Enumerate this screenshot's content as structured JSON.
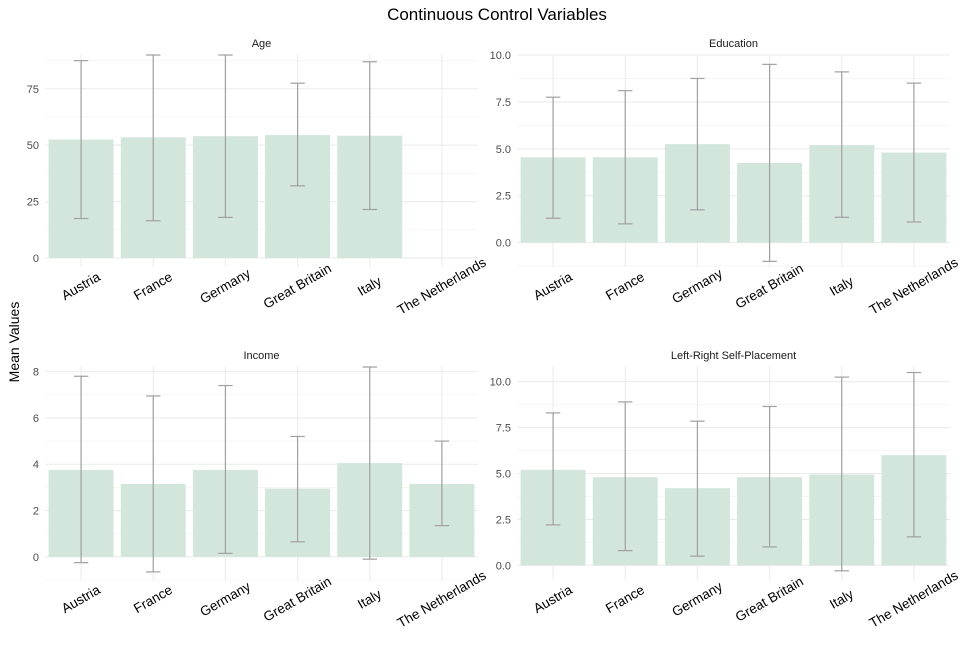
{
  "title": "Continuous Control Variables",
  "y_axis_label": "Mean Values",
  "colors": {
    "bar": "#d3e6dc",
    "errorbar": "#a0a0a0",
    "grid": "#ebebeb"
  },
  "chart_data": [
    {
      "type": "bar",
      "title": "Age",
      "categories": [
        "Austria",
        "France",
        "Germany",
        "Great Britain",
        "Italy",
        "The Netherlands"
      ],
      "values": [
        52.5,
        53.5,
        54.0,
        54.5,
        54.2,
        null
      ],
      "lower": [
        17.5,
        16.5,
        18.0,
        32.0,
        21.5,
        null
      ],
      "upper": [
        87.5,
        90.0,
        90.0,
        77.5,
        87.0,
        null
      ],
      "ylim": [
        -4,
        90
      ],
      "yticks": [
        0,
        25,
        50,
        75
      ],
      "ytick_labels": [
        "0",
        "25",
        "50",
        "75"
      ],
      "minor_step": 12.5,
      "error_bars": true,
      "grid": true
    },
    {
      "type": "bar",
      "title": "Education",
      "categories": [
        "Austria",
        "France",
        "Germany",
        "Great Britain",
        "Italy",
        "The Netherlands"
      ],
      "values": [
        4.55,
        4.55,
        5.25,
        4.25,
        5.2,
        4.8
      ],
      "lower": [
        1.3,
        1.0,
        1.75,
        -1.0,
        1.35,
        1.1
      ],
      "upper": [
        7.75,
        8.1,
        8.75,
        9.5,
        9.1,
        8.5
      ],
      "ylim": [
        -1.3,
        10.0
      ],
      "yticks": [
        0,
        2.5,
        5.0,
        7.5,
        10.0
      ],
      "ytick_labels": [
        "0.0",
        "2.5",
        "5.0",
        "7.5",
        "10.0"
      ],
      "minor_step": 1.25,
      "error_bars": true,
      "grid": true
    },
    {
      "type": "bar",
      "title": "Income",
      "categories": [
        "Austria",
        "France",
        "Germany",
        "Great Britain",
        "Italy",
        "The Netherlands"
      ],
      "values": [
        3.75,
        3.15,
        3.75,
        2.95,
        4.05,
        3.15
      ],
      "lower": [
        -0.25,
        -0.65,
        0.15,
        0.65,
        -0.1,
        1.35
      ],
      "upper": [
        7.8,
        6.95,
        7.4,
        5.2,
        8.2,
        5.0
      ],
      "ylim": [
        -1.0,
        8.2
      ],
      "yticks": [
        0,
        2,
        4,
        6,
        8
      ],
      "ytick_labels": [
        "0",
        "2",
        "4",
        "6",
        "8"
      ],
      "minor_step": 1,
      "error_bars": true,
      "grid": true
    },
    {
      "type": "bar",
      "title": "Left-Right Self-Placement",
      "categories": [
        "Austria",
        "France",
        "Germany",
        "Great Britain",
        "Italy",
        "The Netherlands"
      ],
      "values": [
        5.2,
        4.8,
        4.2,
        4.8,
        4.95,
        6.0
      ],
      "lower": [
        2.2,
        0.8,
        0.5,
        1.0,
        -0.3,
        1.55
      ],
      "upper": [
        8.3,
        8.9,
        7.85,
        8.65,
        10.25,
        10.5
      ],
      "ylim": [
        -0.8,
        10.8
      ],
      "yticks": [
        0,
        2.5,
        5.0,
        7.5,
        10.0
      ],
      "ytick_labels": [
        "0.0",
        "2.5",
        "5.0",
        "7.5",
        "10.0"
      ],
      "minor_step": 1.25,
      "error_bars": true,
      "grid": true
    }
  ]
}
